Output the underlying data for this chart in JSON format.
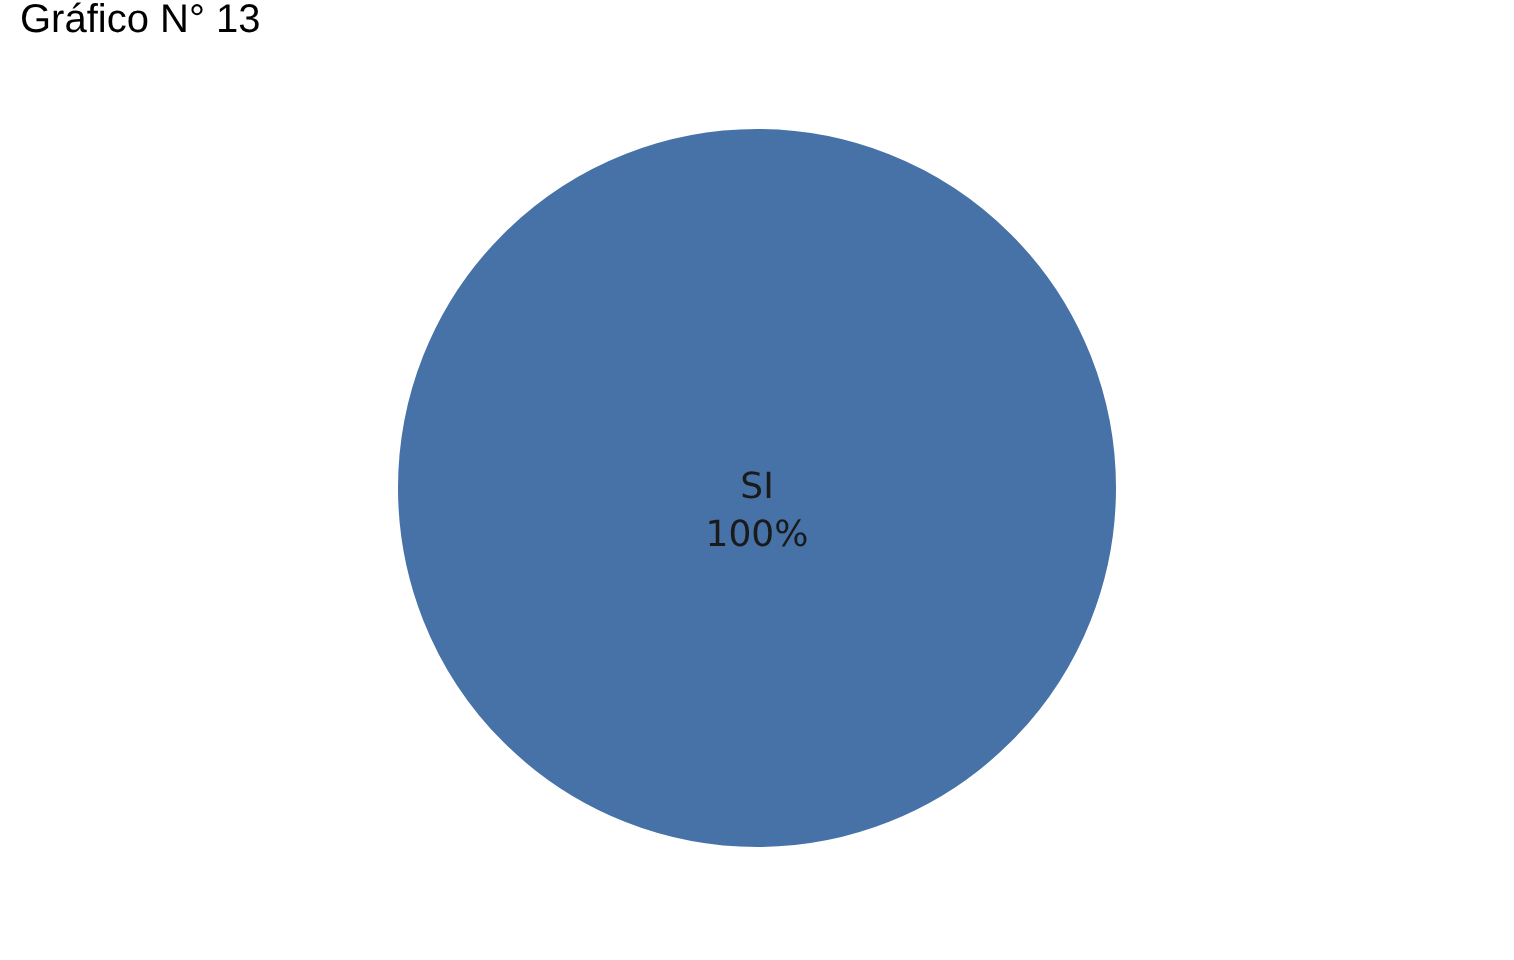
{
  "chart_data": {
    "type": "pie",
    "title": "Gráfico N° 13",
    "categories": [
      "SI"
    ],
    "values": [
      100
    ],
    "colors": [
      "#4672a8"
    ],
    "value_labels": [
      "100%"
    ],
    "legend": false
  }
}
